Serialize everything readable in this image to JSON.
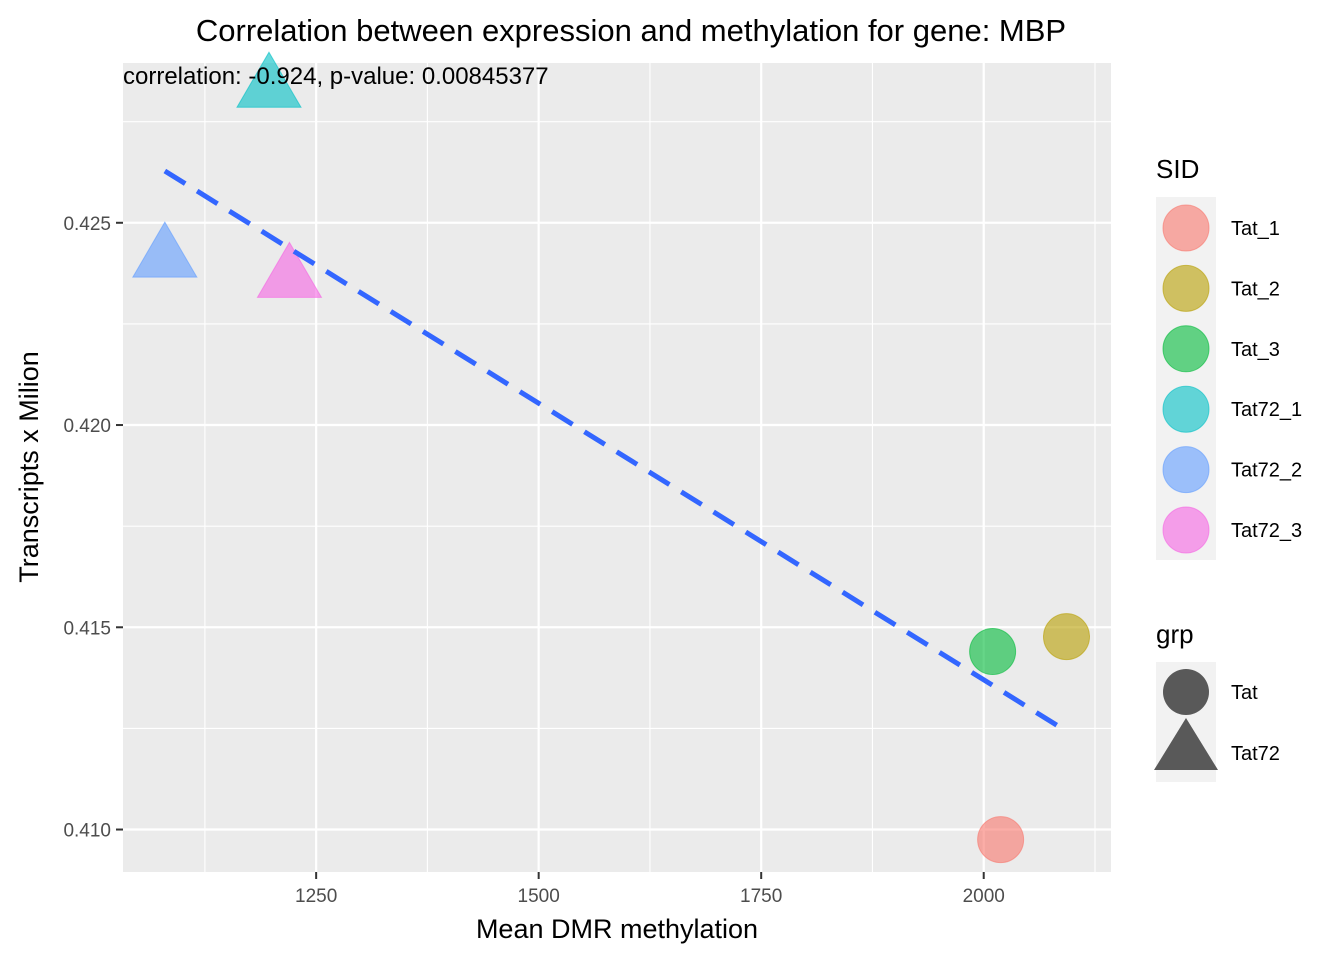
{
  "chart_data": {
    "type": "scatter",
    "title": "Correlation between expression and methylation for gene: MBP",
    "annotation": "correlation: -0.924, p-value: 0.00845377",
    "xlabel": "Mean DMR methylation",
    "ylabel": "Transcripts x Milion",
    "xlim": [
      1033,
      2143
    ],
    "ylim": [
      0.40895,
      0.42895
    ],
    "x_ticks": [
      1250,
      1500,
      1750,
      2000
    ],
    "x_tick_labels": [
      "1250",
      "1500",
      "1750",
      "2000"
    ],
    "y_ticks": [
      0.41,
      0.415,
      0.42,
      0.425
    ],
    "y_tick_labels": [
      "0.410",
      "0.415",
      "0.420",
      "0.425"
    ],
    "grid": true,
    "points": [
      {
        "sid": "Tat_1",
        "grp": "Tat",
        "x": 2019,
        "y": 0.40975
      },
      {
        "sid": "Tat_2",
        "grp": "Tat",
        "x": 2093,
        "y": 0.41477
      },
      {
        "sid": "Tat_3",
        "grp": "Tat",
        "x": 2010,
        "y": 0.4144
      },
      {
        "sid": "Tat72_1",
        "grp": "Tat72",
        "x": 1197,
        "y": 0.42835
      },
      {
        "sid": "Tat72_2",
        "grp": "Tat72",
        "x": 1080,
        "y": 0.42415
      },
      {
        "sid": "Tat72_3",
        "grp": "Tat72",
        "x": 1220,
        "y": 0.42365
      }
    ],
    "trend_line": {
      "x": [
        1080,
        2093
      ],
      "y": [
        0.42628,
        0.41243
      ],
      "style": "dashed",
      "color": "#3366FF"
    },
    "legends": [
      {
        "title": "SID",
        "items": [
          {
            "label": "Tat_1",
            "color": "#F8766D"
          },
          {
            "label": "Tat_2",
            "color": "#B79F00"
          },
          {
            "label": "Tat_3",
            "color": "#00BA38"
          },
          {
            "label": "Tat72_1",
            "color": "#00BFC4"
          },
          {
            "label": "Tat72_2",
            "color": "#619CFF"
          },
          {
            "label": "Tat72_3",
            "color": "#F564E3"
          }
        ]
      },
      {
        "title": "grp",
        "items": [
          {
            "label": "Tat",
            "shape": "circle"
          },
          {
            "label": "Tat72",
            "shape": "triangle"
          }
        ]
      }
    ],
    "legend_position": "right",
    "colors": {
      "panel_bg": "#EBEBEB",
      "grid": "#FFFFFF",
      "legend_key_bg": "#F2F2F2",
      "shape_key": "#595959"
    }
  }
}
